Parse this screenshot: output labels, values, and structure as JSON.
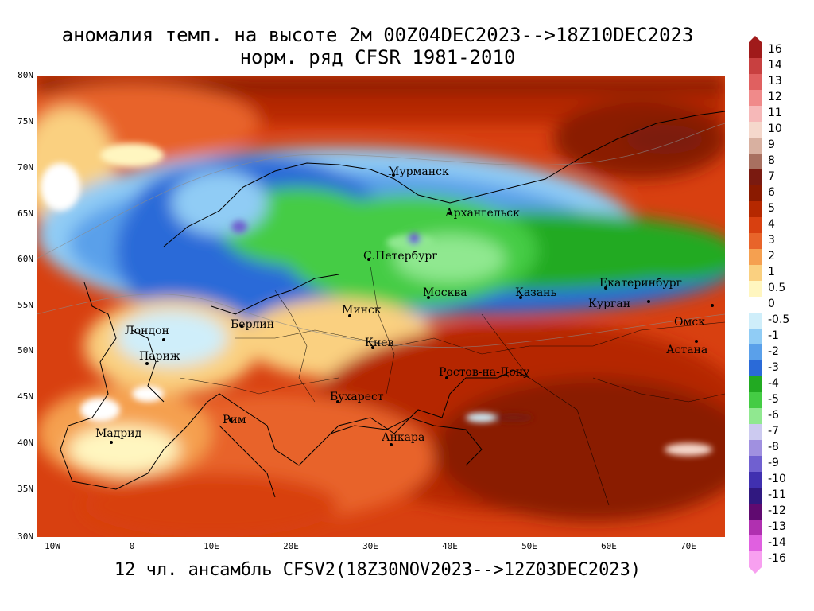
{
  "title": {
    "line1": "аномалия темп. на высоте 2м 00Z04DEC2023-->18Z10DEC2023",
    "line2": "норм. ряд CFSR 1981-2010"
  },
  "footer": "12 чл. ансамбль CFSV2(18Z30NOV2023-->12Z03DEC2023)",
  "map": {
    "lat_labels": [
      "80N",
      "75N",
      "70N",
      "65N",
      "60N",
      "55N",
      "50N",
      "45N",
      "40N",
      "35N",
      "30N"
    ],
    "lon_labels": [
      "10W",
      "0",
      "10E",
      "20E",
      "30E",
      "40E",
      "50E",
      "60E",
      "70E"
    ],
    "cities": [
      {
        "name": "Мурманск",
        "label_text": "Мурманск"
      },
      {
        "name": "Архангельск",
        "label_text": "Архангельск"
      },
      {
        "name": "С.Петербург",
        "label_text": "С.Петербург"
      },
      {
        "name": "Москва",
        "label_text": "Москва"
      },
      {
        "name": "Казань",
        "label_text": "Казань"
      },
      {
        "name": "Екатеринбург",
        "label_text": "Екатеринбург"
      },
      {
        "name": "Курган",
        "label_text": "Курган"
      },
      {
        "name": "Омск",
        "label_text": "Омск"
      },
      {
        "name": "Астана",
        "label_text": "Астана"
      },
      {
        "name": "Минск",
        "label_text": "Минск"
      },
      {
        "name": "Берлин",
        "label_text": "Берлин"
      },
      {
        "name": "Лондон",
        "label_text": "Лондон"
      },
      {
        "name": "Париж",
        "label_text": "Париж"
      },
      {
        "name": "Киев",
        "label_text": "Киев"
      },
      {
        "name": "Ростов-на-Дону",
        "label_text": "Ростов-на-Дону"
      },
      {
        "name": "Бухарест",
        "label_text": "Бухарест"
      },
      {
        "name": "Рим",
        "label_text": "Рим"
      },
      {
        "name": "Мадрид",
        "label_text": "Мадрид"
      },
      {
        "name": "Анкара",
        "label_text": "Анкара"
      }
    ]
  },
  "colorbar": {
    "labels": [
      "16",
      "14",
      "13",
      "12",
      "11",
      "10",
      "9",
      "8",
      "7",
      "6",
      "5",
      "4",
      "3",
      "2",
      "1",
      "0.5",
      "0",
      "-0.5",
      "-1",
      "-2",
      "-3",
      "-4",
      "-5",
      "-6",
      "-7",
      "-8",
      "-9",
      "-10",
      "-11",
      "-12",
      "-13",
      "-14",
      "-16"
    ],
    "colors": [
      "#a01a1a",
      "#c84040",
      "#e06060",
      "#f08a8a",
      "#f6b8b8",
      "#f5d8cc",
      "#d8b0a0",
      "#a87060",
      "#7a1a10",
      "#8a1a00",
      "#b52800",
      "#d84010",
      "#e8642a",
      "#f5a050",
      "#fad080",
      "#fff6c0",
      "#ffffff",
      "#cfeefa",
      "#90ccf5",
      "#5aa0ea",
      "#2a6ad8",
      "#22aa22",
      "#44cc44",
      "#90e890",
      "#cccaf0",
      "#a090e0",
      "#7060d0",
      "#4030b0",
      "#301880",
      "#600a70",
      "#b030b0",
      "#e060e0",
      "#f8a0f0"
    ]
  }
}
